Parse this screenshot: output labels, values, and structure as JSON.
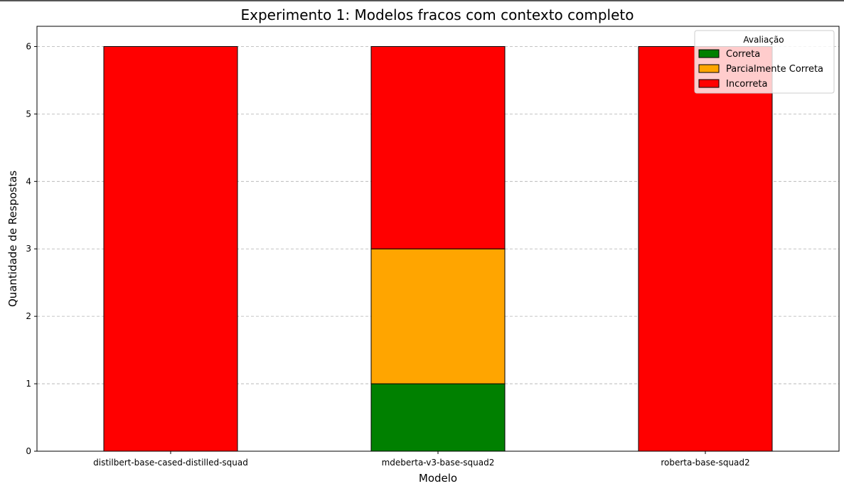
{
  "chart_data": {
    "type": "bar",
    "stacked": true,
    "title": "Experimento 1: Modelos fracos com contexto completo",
    "xlabel": "Modelo",
    "ylabel": "Quantidade de Respostas",
    "categories": [
      "distilbert-base-cased-distilled-squad",
      "mdeberta-v3-base-squad2",
      "roberta-base-squad2"
    ],
    "series": [
      {
        "name": "Correta",
        "values": [
          0,
          1,
          0
        ],
        "color": "#008000"
      },
      {
        "name": "Parcialmente Correta",
        "values": [
          0,
          2,
          0
        ],
        "color": "#ffa500"
      },
      {
        "name": "Incorreta",
        "values": [
          6,
          3,
          6
        ],
        "color": "#ff0000"
      }
    ],
    "ylim": [
      0,
      6.3
    ],
    "yticks": [
      "0",
      "1",
      "2",
      "3",
      "4",
      "5",
      "6"
    ],
    "grid": "horizontal-dashed",
    "legend": {
      "title": "Avaliação",
      "placement": "top-right"
    }
  }
}
